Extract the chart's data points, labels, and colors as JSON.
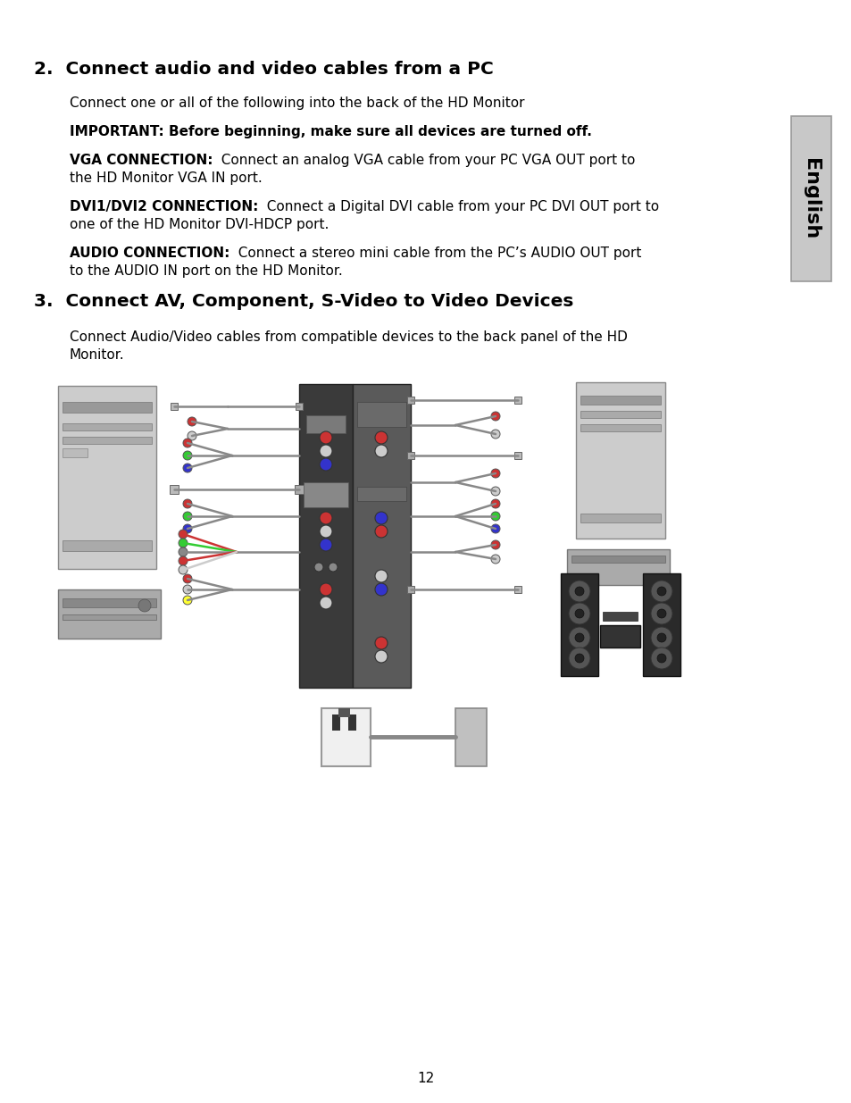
{
  "bg_color": "#ffffff",
  "page_number": "12",
  "tab_text": "English",
  "tab_bg": "#c8c8c8",
  "tab_border": "#999999",
  "title1": "2.  Connect audio and video cables from a PC",
  "title2": "3.  Connect AV, Component, S-Video to Video Devices",
  "line1": "Connect one or all of the following into the back of the HD Monitor",
  "line2_bold": "IMPORTANT: Before beginning, make sure all devices are turned off.",
  "line3_bold": "VGA CONNECTION:",
  "line3_norm": "  Connect an analog VGA cable from your PC VGA OUT port to",
  "line3b": "the HD Monitor VGA IN port.",
  "line4_bold": "DVI1/DVI2 CONNECTION:",
  "line4_norm": "  Connect a Digital DVI cable from your PC DVI OUT port to",
  "line4b": "one of the HD Monitor DVI-HDCP port.",
  "line5_bold": "AUDIO CONNECTION:",
  "line5_norm": "  Connect a stereo mini cable from the PC’s AUDIO OUT port",
  "line5b": "to the AUDIO IN port on the HD Monitor.",
  "line6a": "Connect Audio/Video cables from compatible devices to the back panel of the HD",
  "line6b": "Monitor."
}
